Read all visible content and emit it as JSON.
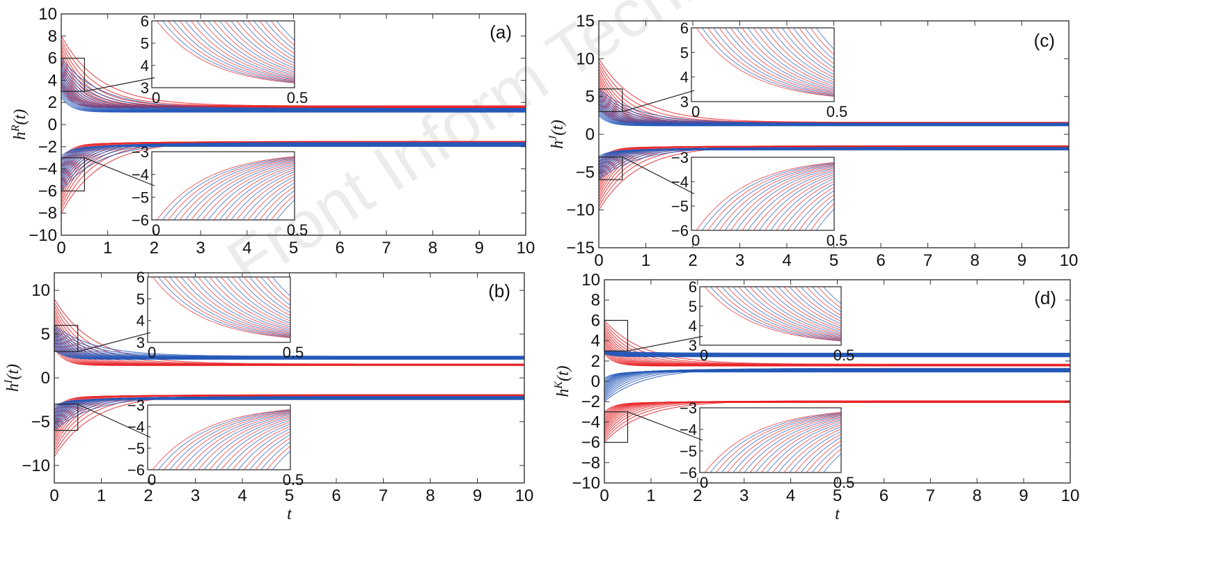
{
  "watermark": "Front Inform Technol Ele",
  "colors": {
    "red": "#e8262a",
    "blue": "#2458b8"
  },
  "chart_data": [
    {
      "type": "line",
      "panel_label": "(a)",
      "ylabel_base": "h",
      "ylabel_sup": "R",
      "ylabel_arg": "(t)",
      "xlabel": "",
      "xlim": [
        0,
        10
      ],
      "ylim": [
        -10,
        10
      ],
      "xticks": [
        0,
        1,
        2,
        3,
        4,
        5,
        6,
        7,
        8,
        9,
        10
      ],
      "yticks": [
        -10,
        -8,
        -6,
        -4,
        -2,
        0,
        2,
        4,
        6,
        8,
        10
      ],
      "series": [
        {
          "color": "red",
          "upper_start": 8,
          "upper_end": 1.6,
          "lower_start": -8,
          "lower_end": -1.6
        },
        {
          "color": "blue",
          "upper_start": 6,
          "upper_end": 1.3,
          "lower_start": -6,
          "lower_end": -1.8
        }
      ],
      "inset_top": {
        "xlim": [
          0,
          0.5
        ],
        "ylim": [
          3,
          6
        ],
        "xticks": [
          0,
          0.5
        ],
        "yticks": [
          3,
          4,
          5,
          6
        ],
        "zoom_box": {
          "x": [
            0,
            0.5
          ],
          "y": [
            3,
            6
          ]
        }
      },
      "inset_bottom": {
        "xlim": [
          0,
          0.5
        ],
        "ylim": [
          -6,
          -3
        ],
        "xticks": [
          0,
          0.5
        ],
        "yticks": [
          -3,
          -4,
          -5,
          -6
        ],
        "zoom_box": {
          "x": [
            0,
            0.5
          ],
          "y": [
            -6,
            -3
          ]
        }
      }
    },
    {
      "type": "line",
      "panel_label": "(b)",
      "ylabel_base": "h",
      "ylabel_sup": "I",
      "ylabel_arg": "(t)",
      "xlabel": "t",
      "xlim": [
        0,
        10
      ],
      "ylim": [
        -12,
        12
      ],
      "xticks": [
        0,
        1,
        2,
        3,
        4,
        5,
        6,
        7,
        8,
        9,
        10
      ],
      "yticks": [
        -10,
        -5,
        0,
        5,
        10
      ],
      "series": [
        {
          "color": "red",
          "upper_start": 9,
          "upper_end": 1.5,
          "lower_start": -9,
          "lower_end": -2.0
        },
        {
          "color": "blue",
          "upper_start": 6,
          "upper_end": 2.3,
          "lower_start": -6,
          "lower_end": -2.3
        }
      ],
      "inset_top": {
        "xlim": [
          0,
          0.5
        ],
        "ylim": [
          3,
          6
        ],
        "xticks": [
          0,
          0.5
        ],
        "yticks": [
          3,
          4,
          5,
          6
        ],
        "zoom_box": {
          "x": [
            0,
            0.5
          ],
          "y": [
            3,
            6
          ]
        }
      },
      "inset_bottom": {
        "xlim": [
          0,
          0.5
        ],
        "ylim": [
          -6,
          -3
        ],
        "xticks": [
          0,
          0.5
        ],
        "yticks": [
          -3,
          -4,
          -5,
          -6
        ],
        "zoom_box": {
          "x": [
            0,
            0.5
          ],
          "y": [
            -6,
            -3
          ]
        }
      }
    },
    {
      "type": "line",
      "panel_label": "(c)",
      "ylabel_base": "h",
      "ylabel_sup": "J",
      "ylabel_arg": "(t)",
      "xlabel": "",
      "xlim": [
        0,
        10
      ],
      "ylim": [
        -15,
        15
      ],
      "xticks": [
        0,
        1,
        2,
        3,
        4,
        5,
        6,
        7,
        8,
        9,
        10
      ],
      "yticks": [
        -15,
        -10,
        -5,
        0,
        5,
        10,
        15
      ],
      "series": [
        {
          "color": "red",
          "upper_start": 10,
          "upper_end": 1.5,
          "lower_start": -10,
          "lower_end": -1.6
        },
        {
          "color": "blue",
          "upper_start": 6,
          "upper_end": 1.3,
          "lower_start": -6,
          "lower_end": -1.9
        }
      ],
      "inset_top": {
        "xlim": [
          0,
          0.5
        ],
        "ylim": [
          3,
          6
        ],
        "xticks": [
          0,
          0.5
        ],
        "yticks": [
          3,
          4,
          5,
          6
        ],
        "zoom_box": {
          "x": [
            0,
            0.5
          ],
          "y": [
            3,
            6
          ]
        }
      },
      "inset_bottom": {
        "xlim": [
          0,
          0.5
        ],
        "ylim": [
          -6,
          -3
        ],
        "xticks": [
          0,
          0.5
        ],
        "yticks": [
          -3,
          -4,
          -5,
          -6
        ],
        "zoom_box": {
          "x": [
            0,
            0.5
          ],
          "y": [
            -6,
            -3
          ]
        }
      }
    },
    {
      "type": "line",
      "panel_label": "(d)",
      "ylabel_base": "h",
      "ylabel_sup": "K",
      "ylabel_arg": "(t)",
      "xlabel": "t",
      "xlim": [
        0,
        10
      ],
      "ylim": [
        -10,
        10
      ],
      "xticks": [
        0,
        1,
        2,
        3,
        4,
        5,
        6,
        7,
        8,
        9,
        10
      ],
      "yticks": [
        -10,
        -8,
        -6,
        -4,
        -2,
        0,
        2,
        4,
        6,
        8,
        10
      ],
      "series": [
        {
          "color": "red",
          "upper_start": 6,
          "upper_end": 1.6,
          "lower_start": -6,
          "lower_end": -2.0
        },
        {
          "color": "blue",
          "upper_start": 3,
          "upper_end": 2.6,
          "lower_start": -2,
          "lower_end": 1.1
        }
      ],
      "inset_top": {
        "xlim": [
          0,
          0.5
        ],
        "ylim": [
          3,
          6
        ],
        "xticks": [
          0,
          0.5
        ],
        "yticks": [
          3,
          4,
          5,
          6
        ],
        "zoom_box": {
          "x": [
            0,
            0.5
          ],
          "y": [
            3,
            6
          ]
        }
      },
      "inset_bottom": {
        "xlim": [
          0,
          0.5
        ],
        "ylim": [
          -6,
          -3
        ],
        "xticks": [
          0,
          0.5
        ],
        "yticks": [
          -3,
          -4,
          -5,
          -6
        ],
        "zoom_box": {
          "x": [
            0,
            0.5
          ],
          "y": [
            -6,
            -3
          ]
        }
      }
    }
  ]
}
